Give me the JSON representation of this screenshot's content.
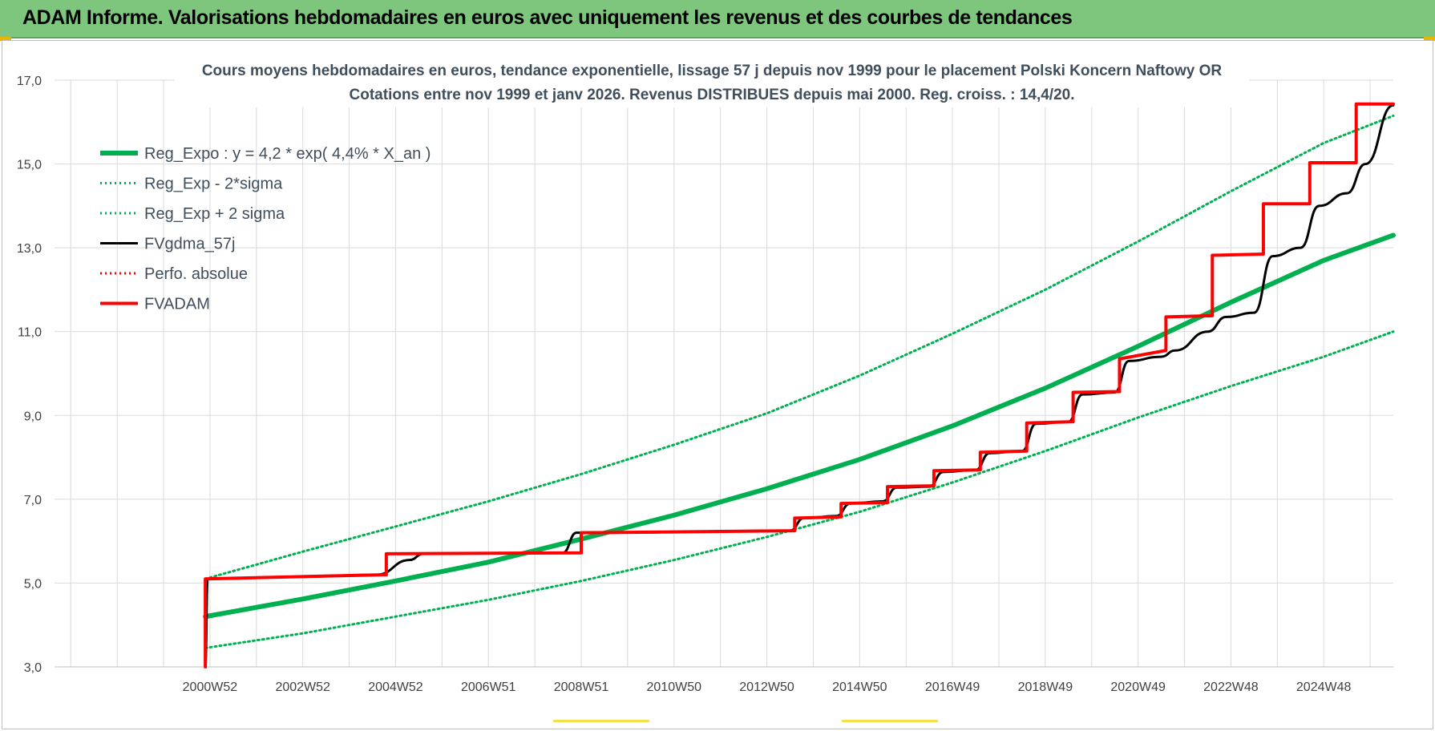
{
  "header": {
    "title": "ADAM Informe. Valorisations hebdomadaires en euros avec uniquement les revenus et des courbes de tendances"
  },
  "chart_data": {
    "type": "line",
    "title": "Cours moyens hebdomadaires en euros, tendance exponentielle, lissage 57 j depuis nov 1999  pour le  placement Polski Koncern Naftowy OR",
    "subtitle": "Cotations entre nov 1999 et janv 2026. Revenus DISTRIBUES depuis mai 2000.  Reg. croiss. : 14,4/20.",
    "xlabel": "",
    "ylabel": "",
    "ylim": [
      3.0,
      17.0
    ],
    "yticks": [
      "3,0",
      "5,0",
      "7,0",
      "9,0",
      "11,0",
      "13,0",
      "15,0",
      "17,0"
    ],
    "x_range": [
      1997.65,
      2026.5
    ],
    "x_ticks": [
      {
        "label": "2000W52",
        "x": 2001.0
      },
      {
        "label": "2002W52",
        "x": 2003.0
      },
      {
        "label": "2004W52",
        "x": 2005.0
      },
      {
        "label": "2006W51",
        "x": 2007.0
      },
      {
        "label": "2008W51",
        "x": 2009.0
      },
      {
        "label": "2010W50",
        "x": 2011.0
      },
      {
        "label": "2012W50",
        "x": 2013.0
      },
      {
        "label": "2014W50",
        "x": 2015.0
      },
      {
        "label": "2016W49",
        "x": 2017.0
      },
      {
        "label": "2018W49",
        "x": 2019.0
      },
      {
        "label": "2020W49",
        "x": 2021.0
      },
      {
        "label": "2022W48",
        "x": 2023.0
      },
      {
        "label": "2024W48",
        "x": 2025.0
      }
    ],
    "grid": true,
    "legend_position": "top-left",
    "series": [
      {
        "name": "Reg_Expo : y = 4,2 * exp( 4,4% *  X_an )",
        "color": "#00b050",
        "style": "solid-thick",
        "x": [
          2000.9,
          2003,
          2005,
          2007,
          2009,
          2011,
          2013,
          2015,
          2017,
          2019,
          2021,
          2023,
          2025,
          2026.5
        ],
        "y": [
          4.2,
          4.62,
          5.05,
          5.5,
          6.05,
          6.62,
          7.25,
          7.95,
          8.75,
          9.65,
          10.65,
          11.7,
          12.7,
          13.3
        ]
      },
      {
        "name": "Reg_Exp - 2*sigma",
        "color": "#00b050",
        "style": "dotted",
        "x": [
          2000.9,
          2003,
          2005,
          2007,
          2009,
          2011,
          2013,
          2015,
          2017,
          2019,
          2021,
          2023,
          2025,
          2026.5
        ],
        "y": [
          3.45,
          3.8,
          4.2,
          4.6,
          5.05,
          5.55,
          6.1,
          6.7,
          7.4,
          8.15,
          8.95,
          9.7,
          10.4,
          11.0
        ]
      },
      {
        "name": "Reg_Exp + 2 sigma",
        "color": "#00b050",
        "style": "dotted",
        "x": [
          2000.9,
          2003,
          2005,
          2007,
          2009,
          2011,
          2013,
          2015,
          2017,
          2019,
          2021,
          2023,
          2025,
          2026.5
        ],
        "y": [
          5.1,
          5.75,
          6.35,
          6.95,
          7.6,
          8.3,
          9.05,
          9.95,
          10.95,
          12.0,
          13.15,
          14.35,
          15.5,
          16.15
        ]
      },
      {
        "name": "FVgdma_57j",
        "color": "#000000",
        "style": "solid",
        "x": [
          2000.9,
          2000.95,
          2003,
          2004.6,
          2005.3,
          2005.6,
          2008.6,
          2008.9,
          2009.2,
          2013.5,
          2013.8,
          2014.5,
          2014.8,
          2015.5,
          2015.8,
          2016.5,
          2016.8,
          2017.5,
          2017.8,
          2018.5,
          2018.8,
          2019.5,
          2019.8,
          2020.5,
          2020.8,
          2021.5,
          2021.8,
          2022.5,
          2022.9,
          2023.5,
          2023.9,
          2024.5,
          2024.9,
          2025.5,
          2025.9,
          2026.5
        ],
        "y": [
          3.0,
          5.1,
          5.15,
          5.2,
          5.55,
          5.7,
          5.72,
          6.2,
          6.2,
          6.25,
          6.55,
          6.6,
          6.9,
          6.95,
          7.28,
          7.3,
          7.65,
          7.7,
          8.1,
          8.15,
          8.8,
          8.85,
          9.5,
          9.55,
          10.3,
          10.4,
          10.55,
          11.0,
          11.35,
          11.45,
          12.8,
          13.0,
          14.0,
          14.3,
          15.0,
          16.4
        ]
      },
      {
        "name": "Perfo. absolue",
        "color": "#ff0000",
        "style": "dotted",
        "x": [],
        "y": []
      },
      {
        "name": "FVADAM",
        "color": "#ff0000",
        "style": "solid-thick",
        "x": [
          2000.9,
          2000.9,
          2004.8,
          2004.8,
          2009.0,
          2009.0,
          2013.6,
          2013.6,
          2014.6,
          2014.6,
          2015.6,
          2015.6,
          2016.6,
          2016.6,
          2017.6,
          2017.6,
          2018.6,
          2018.6,
          2019.6,
          2019.6,
          2020.6,
          2020.6,
          2021.6,
          2021.6,
          2022.6,
          2022.6,
          2023.7,
          2023.7,
          2024.7,
          2024.7,
          2025.7,
          2025.7,
          2026.5
        ],
        "y": [
          3.0,
          5.1,
          5.2,
          5.7,
          5.72,
          6.2,
          6.25,
          6.55,
          6.58,
          6.9,
          6.92,
          7.3,
          7.32,
          7.68,
          7.7,
          8.12,
          8.15,
          8.82,
          8.85,
          9.55,
          9.57,
          10.35,
          10.55,
          11.35,
          11.38,
          12.82,
          12.85,
          14.05,
          14.05,
          15.03,
          15.03,
          16.43,
          16.43
        ]
      }
    ]
  }
}
